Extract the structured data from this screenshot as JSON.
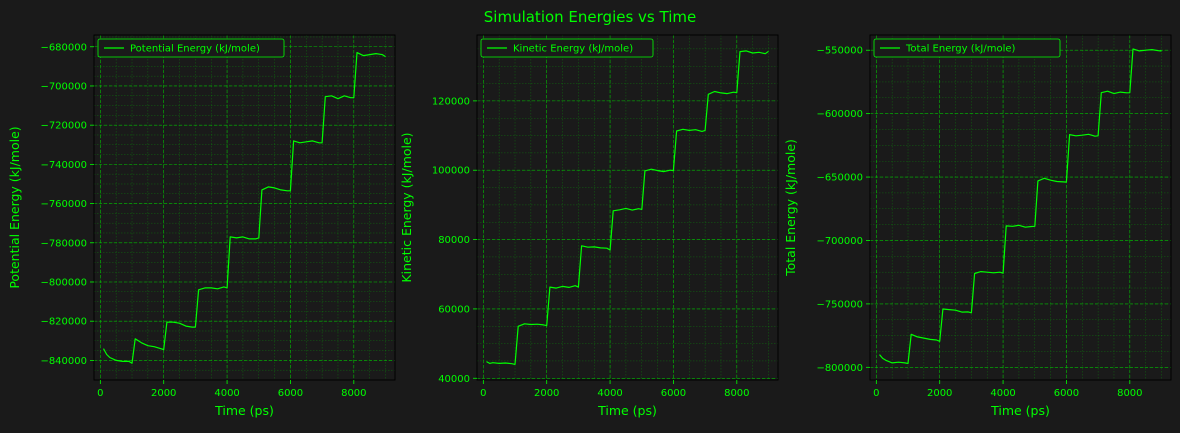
{
  "figure": {
    "title": "Simulation Energies vs Time"
  },
  "colors": {
    "background": "#1a1a1a",
    "accent": "#00ff00",
    "grid": "#00cc00"
  },
  "chart_data": [
    {
      "type": "line",
      "xlabel": "Time (ps)",
      "ylabel": "Potential Energy (kJ/mole)",
      "xlim": [
        -200,
        9300
      ],
      "ylim": [
        -850000,
        -674000
      ],
      "xticks": [
        0,
        2000,
        4000,
        6000,
        8000
      ],
      "yticks": [
        -840000,
        -820000,
        -800000,
        -780000,
        -760000,
        -740000,
        -720000,
        -700000,
        -680000
      ],
      "legend": "top-left",
      "grid": true,
      "series": [
        {
          "name": "Potential Energy (kJ/mole)",
          "x": [
            100,
            200,
            300,
            500,
            700,
            900,
            1000,
            1100,
            1300,
            1500,
            1700,
            1900,
            2000,
            2100,
            2300,
            2500,
            2700,
            2900,
            3000,
            3100,
            3300,
            3500,
            3700,
            3900,
            4000,
            4100,
            4300,
            4500,
            4700,
            4900,
            5000,
            5100,
            5300,
            5500,
            5700,
            5900,
            6000,
            6100,
            6300,
            6500,
            6700,
            6900,
            7000,
            7100,
            7300,
            7500,
            7700,
            7900,
            8000,
            8100,
            8300,
            8500,
            8700,
            8900,
            9000
          ],
          "y": [
            -834000,
            -837000,
            -838500,
            -840000,
            -840500,
            -840500,
            -841500,
            -829000,
            -831000,
            -832500,
            -833000,
            -834000,
            -834500,
            -820500,
            -820500,
            -821000,
            -822500,
            -823000,
            -823000,
            -804000,
            -803000,
            -803000,
            -803500,
            -802500,
            -803000,
            -777000,
            -777500,
            -777000,
            -778000,
            -778000,
            -777500,
            -753000,
            -751500,
            -752000,
            -753000,
            -753500,
            -753500,
            -728000,
            -729000,
            -728500,
            -728000,
            -729000,
            -729000,
            -705500,
            -705000,
            -706500,
            -705000,
            -706000,
            -706000,
            -683000,
            -684500,
            -684000,
            -683500,
            -684000,
            -685000
          ]
        }
      ]
    },
    {
      "type": "line",
      "xlabel": "Time (ps)",
      "ylabel": "Kinetic Energy (kJ/mole)",
      "xlim": [
        -200,
        9300
      ],
      "ylim": [
        39500,
        139000
      ],
      "xticks": [
        0,
        2000,
        4000,
        6000,
        8000
      ],
      "yticks": [
        40000,
        60000,
        80000,
        100000,
        120000
      ],
      "legend": "top-left",
      "grid": true,
      "series": [
        {
          "name": "Kinetic Energy (kJ/mole)",
          "x": [
            100,
            200,
            300,
            500,
            700,
            900,
            1000,
            1100,
            1300,
            1500,
            1700,
            1900,
            2000,
            2100,
            2300,
            2500,
            2700,
            2900,
            3000,
            3100,
            3300,
            3500,
            3700,
            3900,
            4000,
            4100,
            4300,
            4500,
            4700,
            4900,
            5000,
            5100,
            5300,
            5500,
            5700,
            5900,
            6000,
            6100,
            6300,
            6500,
            6700,
            6900,
            7000,
            7100,
            7300,
            7500,
            7700,
            7900,
            8000,
            8100,
            8300,
            8500,
            8700,
            8900,
            9000
          ],
          "y": [
            44800,
            44300,
            44500,
            44300,
            44400,
            44200,
            44000,
            55000,
            55700,
            55500,
            55600,
            55400,
            55200,
            66300,
            66000,
            66500,
            66200,
            66700,
            66300,
            78200,
            77800,
            77900,
            77600,
            77500,
            77000,
            88300,
            88600,
            89000,
            88500,
            88900,
            88700,
            99800,
            100300,
            99900,
            99600,
            100000,
            99900,
            111300,
            111800,
            111500,
            111700,
            111200,
            111500,
            121900,
            122700,
            122300,
            122100,
            122500,
            122400,
            134200,
            134400,
            133800,
            134000,
            133600,
            134300
          ]
        }
      ]
    },
    {
      "type": "line",
      "xlabel": "Time (ps)",
      "ylabel": "Total Energy (kJ/mole)",
      "xlim": [
        -200,
        9300
      ],
      "ylim": [
        -810000,
        -538000
      ],
      "xticks": [
        0,
        2000,
        4000,
        6000,
        8000
      ],
      "yticks": [
        -800000,
        -750000,
        -700000,
        -650000,
        -600000,
        -550000
      ],
      "legend": "top-left",
      "grid": true,
      "series": [
        {
          "name": "Total Energy (kJ/mole)",
          "x": [
            100,
            200,
            300,
            500,
            700,
            900,
            1000,
            1100,
            1300,
            1500,
            1700,
            1900,
            2000,
            2100,
            2300,
            2500,
            2700,
            2900,
            3000,
            3100,
            3300,
            3500,
            3700,
            3900,
            4000,
            4100,
            4300,
            4500,
            4700,
            4900,
            5000,
            5100,
            5300,
            5500,
            5700,
            5900,
            6000,
            6100,
            6300,
            6500,
            6700,
            6900,
            7000,
            7100,
            7300,
            7500,
            7700,
            7900,
            8000,
            8100,
            8300,
            8500,
            8700,
            8900,
            9000
          ],
          "y": [
            -790000,
            -793000,
            -794500,
            -796500,
            -796000,
            -796500,
            -797000,
            -774000,
            -776000,
            -777000,
            -778000,
            -778500,
            -779500,
            -754000,
            -754500,
            -755000,
            -756500,
            -756300,
            -757000,
            -726000,
            -724500,
            -725000,
            -725500,
            -725000,
            -725800,
            -688500,
            -688800,
            -688000,
            -689500,
            -689000,
            -688800,
            -653000,
            -651000,
            -652500,
            -653500,
            -653800,
            -654000,
            -616500,
            -617500,
            -617000,
            -616300,
            -617800,
            -617500,
            -583500,
            -582300,
            -584200,
            -583000,
            -583600,
            -583500,
            -549000,
            -550500,
            -550000,
            -549500,
            -550400,
            -550600
          ]
        }
      ]
    }
  ]
}
